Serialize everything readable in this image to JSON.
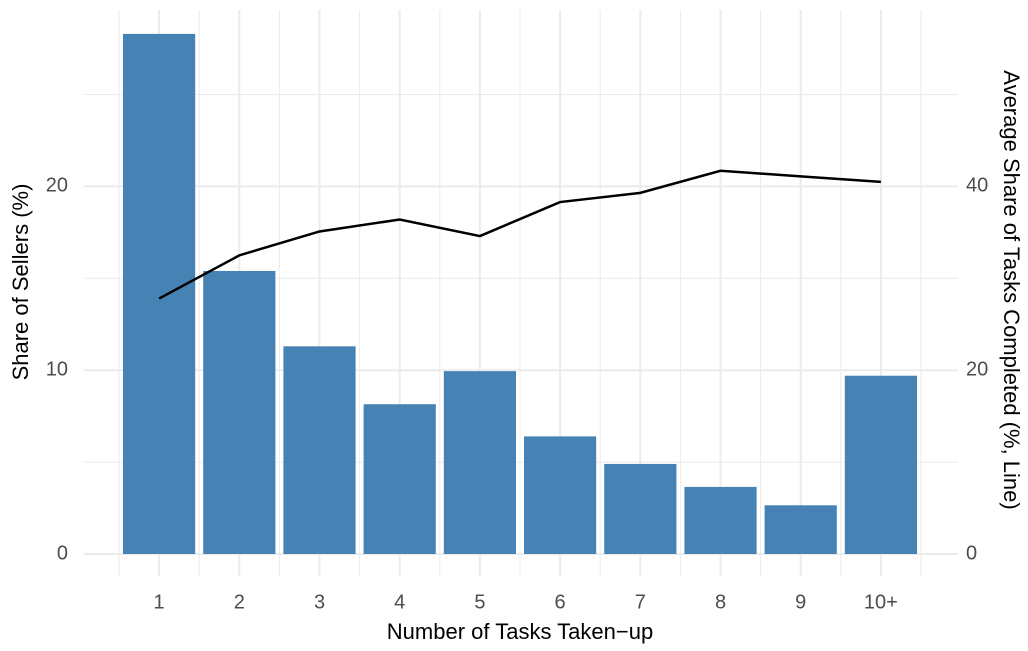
{
  "chart_data": {
    "type": "bar",
    "x_label": "Number of Tasks Taken−up",
    "y_label": "Share of Sellers (%)",
    "y2_label": "Average Share of Tasks Completed (%, Line)",
    "categories": [
      "1",
      "2",
      "3",
      "4",
      "5",
      "6",
      "7",
      "8",
      "9",
      "10+"
    ],
    "series": [
      {
        "type": "bar",
        "color": "#4682b4",
        "values": [
          28.3,
          15.4,
          11.3,
          8.15,
          9.95,
          6.4,
          4.9,
          3.65,
          2.65,
          9.7
        ]
      },
      {
        "type": "line",
        "axis": "y2",
        "color": "#000000",
        "values": [
          27.8,
          32.5,
          35.1,
          36.4,
          34.6,
          38.3,
          39.3,
          41.7,
          41.1,
          40.5
        ]
      }
    ],
    "ylim": [
      0,
      29.6
    ],
    "yticks": [
      0,
      10,
      20
    ],
    "y2lim": [
      0,
      59.2
    ],
    "y2ticks": [
      0,
      20,
      40
    ],
    "grid": true
  }
}
